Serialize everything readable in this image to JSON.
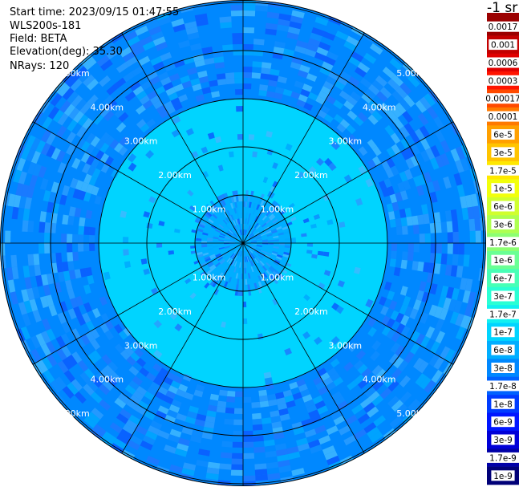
{
  "header": {
    "start_time": "Start time: 2023/09/15 01:47:55",
    "instrument": "WLS200s-181",
    "field": "Field: BETA",
    "elevation": "Elevation(deg): 35.30",
    "nrays": "NRays: 120"
  },
  "chart_data": {
    "type": "heatmap",
    "projection": "polar-ppi",
    "field": "BETA",
    "nrays": 120,
    "elevation_deg": 35.3,
    "range_rings_km": [
      1.0,
      2.0,
      3.0,
      4.0,
      5.0
    ],
    "range_labels": [
      "1.00km",
      "2.00km",
      "3.00km",
      "4.00km",
      "5.00km"
    ],
    "max_range_km": 5.1,
    "azimuth_lines_deg": [
      0,
      30,
      60,
      90,
      120,
      150,
      180,
      210,
      240,
      270,
      300,
      330
    ],
    "colorbar": {
      "unit_label": "-1 sr",
      "labels": [
        "0.0017",
        "0.001",
        "0.0006",
        "0.0003",
        "0.00017",
        "0.0001",
        "6e-5",
        "3e-5",
        "1.7e-5",
        "1e-5",
        "6e-6",
        "3e-6",
        "1.7e-6",
        "1e-6",
        "6e-7",
        "3e-7",
        "1.7e-7",
        "1e-7",
        "6e-8",
        "3e-8",
        "1.7e-8",
        "1e-8",
        "6e-9",
        "3e-9",
        "1.7e-9",
        "1e-9"
      ],
      "colors": [
        "#9b0000",
        "#c30000",
        "#e00000",
        "#ff1400",
        "#ff4a00",
        "#ff7a00",
        "#ffa000",
        "#ffc400",
        "#ffe800",
        "#f2ff0c",
        "#d0ff2e",
        "#aeff50",
        "#8cff72",
        "#6aff94",
        "#48ffb6",
        "#2affd4",
        "#12f0f0",
        "#00d4ff",
        "#00aeff",
        "#0088ff",
        "#0062ff",
        "#003cff",
        "#0016ff",
        "#0000d8",
        "#0000a8",
        "#000078"
      ]
    },
    "range_zones": [
      {
        "from_km": 0.0,
        "to_km": 1.0,
        "beta": "6e-8"
      },
      {
        "from_km": 1.0,
        "to_km": 3.0,
        "beta": "1e-7"
      },
      {
        "from_km": 3.0,
        "to_km": 5.1,
        "beta": "3e-8"
      }
    ]
  }
}
